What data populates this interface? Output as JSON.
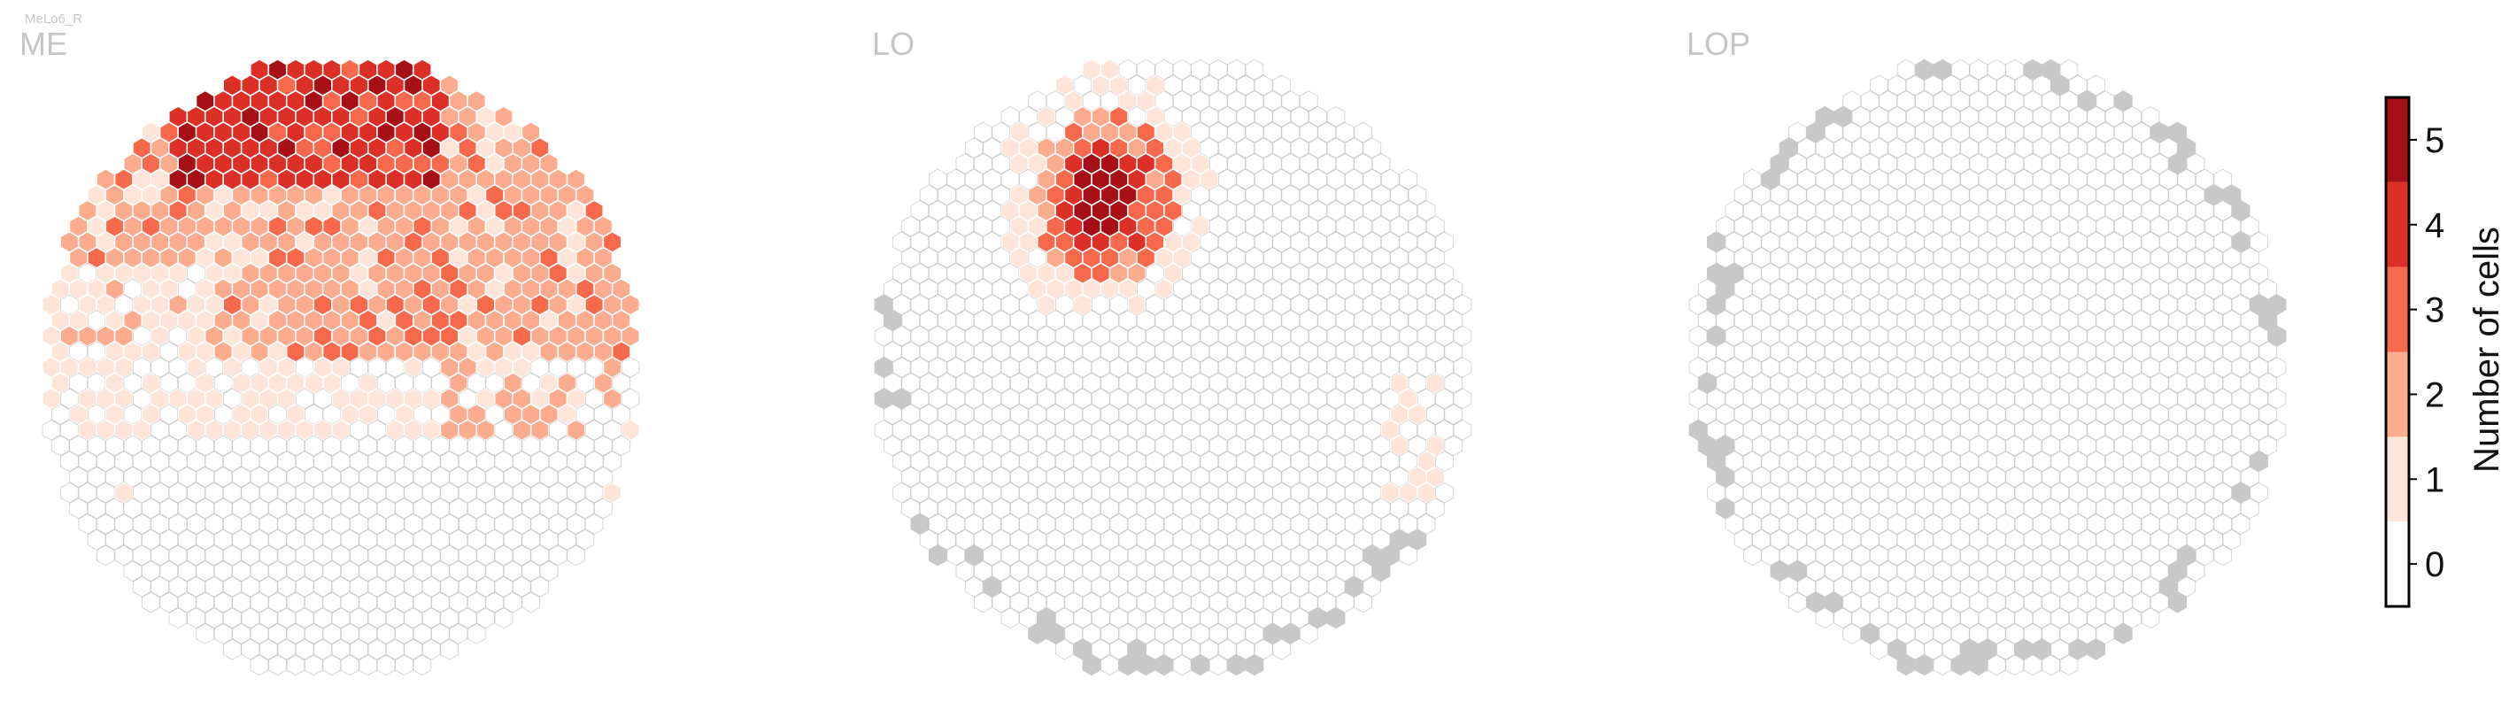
{
  "figure": {
    "subtitle": "MeLo6_R"
  },
  "chart_data": {
    "type": "hexbin-eye-map",
    "colormap": "Reds",
    "colorbar": {
      "label": "Number of cells",
      "ticks": [
        0,
        1,
        2,
        3,
        4,
        5
      ],
      "bins": [
        {
          "value": 0,
          "color": "#ffffff"
        },
        {
          "value": 1,
          "color": "#fde5da"
        },
        {
          "value": 2,
          "color": "#fbac8f"
        },
        {
          "value": 3,
          "color": "#f7694c"
        },
        {
          "value": 4,
          "color": "#db2f27"
        },
        {
          "value": 5,
          "color": "#a50f15"
        }
      ],
      "range": [
        -0.5,
        5.5
      ]
    },
    "colors": {
      "empty_edge": "#cccccc",
      "missing_column": "#c8c8c8",
      "label_gray": "#c6c6c6"
    },
    "panels": [
      {
        "title": "ME",
        "description": "Dorsal half heavily innervated; values up to 5 in the upper-center region",
        "region_values": {
          "dorsal_center": 5,
          "dorsal": 3,
          "mid": 1,
          "ventral": 0
        }
      },
      {
        "title": "LO",
        "description": "Single compact cluster in the dorsal-anterior region; peak value 5",
        "region_values": {
          "cluster_core": 5,
          "cluster_edge": 3,
          "periphery": 1,
          "elsewhere": 0
        },
        "missing_columns_on_rim": true
      },
      {
        "title": "LOP",
        "description": "No innervation; all columns 0; missing columns along the rim",
        "region_values": {
          "all": 0
        },
        "missing_columns_on_rim": true
      }
    ]
  }
}
